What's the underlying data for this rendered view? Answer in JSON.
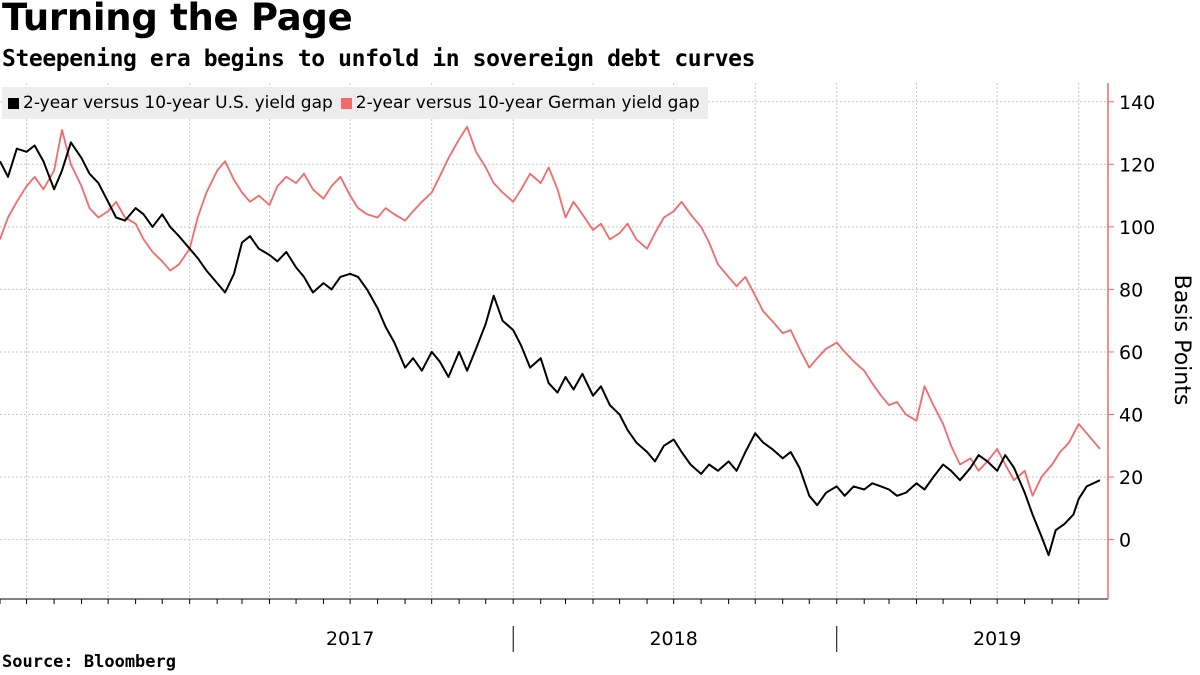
{
  "title": "Turning the Page",
  "subtitle": "Steepening era begins to unfold in sovereign debt curves",
  "source": "Source: Bloomberg",
  "colors": {
    "us": "#000000",
    "german": "#f26a6a",
    "axis": "#f26a6a",
    "grid": "#c8c8c8"
  },
  "chart_data": {
    "type": "line",
    "title": "Turning the Page",
    "subtitle": "Steepening era begins to unfold in sovereign debt curves",
    "xlabel": "",
    "ylabel": "Basis Points",
    "y_axis_side": "right",
    "ylim": [
      -19,
      146
    ],
    "yticks": [
      0,
      20,
      40,
      60,
      80,
      100,
      120,
      140
    ],
    "xlim": [
      "2016-06-01",
      "2019-10-25"
    ],
    "x_labels": [
      {
        "label": "2017",
        "date": "2017-07-01"
      },
      {
        "label": "2018",
        "date": "2018-07-01"
      },
      {
        "label": "2019",
        "date": "2019-07-01"
      }
    ],
    "year_separators": [
      "2018-01-01",
      "2019-01-01"
    ],
    "grid": true,
    "legend": "top-left",
    "series": [
      {
        "name": "2-year versus 10-year U.S. yield gap",
        "color": "#000000",
        "points": [
          [
            "2016-06-01",
            121
          ],
          [
            "2016-06-10",
            116
          ],
          [
            "2016-06-20",
            125
          ],
          [
            "2016-07-01",
            124
          ],
          [
            "2016-07-10",
            126
          ],
          [
            "2016-07-20",
            121
          ],
          [
            "2016-08-01",
            112
          ],
          [
            "2016-08-10",
            118
          ],
          [
            "2016-08-20",
            127
          ],
          [
            "2016-09-01",
            122
          ],
          [
            "2016-09-10",
            117
          ],
          [
            "2016-09-20",
            114
          ],
          [
            "2016-10-01",
            108
          ],
          [
            "2016-10-10",
            103
          ],
          [
            "2016-10-20",
            102
          ],
          [
            "2016-11-01",
            106
          ],
          [
            "2016-11-10",
            104
          ],
          [
            "2016-11-20",
            100
          ],
          [
            "2016-12-01",
            104
          ],
          [
            "2016-12-10",
            100
          ],
          [
            "2016-12-20",
            97
          ],
          [
            "2017-01-01",
            93
          ],
          [
            "2017-01-10",
            90
          ],
          [
            "2017-01-20",
            86
          ],
          [
            "2017-02-01",
            82
          ],
          [
            "2017-02-10",
            79
          ],
          [
            "2017-02-20",
            85
          ],
          [
            "2017-03-01",
            95
          ],
          [
            "2017-03-10",
            97
          ],
          [
            "2017-03-20",
            93
          ],
          [
            "2017-04-01",
            91
          ],
          [
            "2017-04-10",
            89
          ],
          [
            "2017-04-20",
            92
          ],
          [
            "2017-05-01",
            87
          ],
          [
            "2017-05-10",
            84
          ],
          [
            "2017-05-20",
            79
          ],
          [
            "2017-06-01",
            82
          ],
          [
            "2017-06-10",
            80
          ],
          [
            "2017-06-20",
            84
          ],
          [
            "2017-07-01",
            85
          ],
          [
            "2017-07-10",
            84
          ],
          [
            "2017-07-20",
            80
          ],
          [
            "2017-08-01",
            74
          ],
          [
            "2017-08-10",
            68
          ],
          [
            "2017-08-20",
            63
          ],
          [
            "2017-09-01",
            55
          ],
          [
            "2017-09-10",
            58
          ],
          [
            "2017-09-20",
            54
          ],
          [
            "2017-10-01",
            60
          ],
          [
            "2017-10-10",
            57
          ],
          [
            "2017-10-20",
            52
          ],
          [
            "2017-11-01",
            60
          ],
          [
            "2017-11-10",
            54
          ],
          [
            "2017-11-20",
            61
          ],
          [
            "2017-12-01",
            69
          ],
          [
            "2017-12-10",
            78
          ],
          [
            "2017-12-20",
            70
          ],
          [
            "2018-01-01",
            67
          ],
          [
            "2018-01-10",
            62
          ],
          [
            "2018-01-20",
            55
          ],
          [
            "2018-02-01",
            58
          ],
          [
            "2018-02-10",
            50
          ],
          [
            "2018-02-20",
            47
          ],
          [
            "2018-03-01",
            52
          ],
          [
            "2018-03-10",
            48
          ],
          [
            "2018-03-20",
            53
          ],
          [
            "2018-04-01",
            46
          ],
          [
            "2018-04-10",
            49
          ],
          [
            "2018-04-20",
            43
          ],
          [
            "2018-05-01",
            40
          ],
          [
            "2018-05-10",
            35
          ],
          [
            "2018-05-20",
            31
          ],
          [
            "2018-06-01",
            28
          ],
          [
            "2018-06-10",
            25
          ],
          [
            "2018-06-20",
            30
          ],
          [
            "2018-07-01",
            32
          ],
          [
            "2018-07-10",
            28
          ],
          [
            "2018-07-20",
            24
          ],
          [
            "2018-08-01",
            21
          ],
          [
            "2018-08-10",
            24
          ],
          [
            "2018-08-20",
            22
          ],
          [
            "2018-09-01",
            25
          ],
          [
            "2018-09-10",
            22
          ],
          [
            "2018-09-20",
            28
          ],
          [
            "2018-10-01",
            34
          ],
          [
            "2018-10-10",
            31
          ],
          [
            "2018-10-20",
            29
          ],
          [
            "2018-11-01",
            26
          ],
          [
            "2018-11-10",
            28
          ],
          [
            "2018-11-20",
            23
          ],
          [
            "2018-12-01",
            14
          ],
          [
            "2018-12-10",
            11
          ],
          [
            "2018-12-20",
            15
          ],
          [
            "2019-01-01",
            17
          ],
          [
            "2019-01-10",
            14
          ],
          [
            "2019-01-20",
            17
          ],
          [
            "2019-02-01",
            16
          ],
          [
            "2019-02-10",
            18
          ],
          [
            "2019-02-20",
            17
          ],
          [
            "2019-03-01",
            16
          ],
          [
            "2019-03-10",
            14
          ],
          [
            "2019-03-20",
            15
          ],
          [
            "2019-04-01",
            18
          ],
          [
            "2019-04-10",
            16
          ],
          [
            "2019-04-20",
            20
          ],
          [
            "2019-05-01",
            24
          ],
          [
            "2019-05-10",
            22
          ],
          [
            "2019-05-20",
            19
          ],
          [
            "2019-06-01",
            23
          ],
          [
            "2019-06-10",
            27
          ],
          [
            "2019-06-20",
            25
          ],
          [
            "2019-07-01",
            22
          ],
          [
            "2019-07-10",
            27
          ],
          [
            "2019-07-20",
            23
          ],
          [
            "2019-08-01",
            15
          ],
          [
            "2019-08-10",
            8
          ],
          [
            "2019-08-20",
            1
          ],
          [
            "2019-08-28",
            -5
          ],
          [
            "2019-09-05",
            3
          ],
          [
            "2019-09-15",
            5
          ],
          [
            "2019-09-25",
            8
          ],
          [
            "2019-10-01",
            13
          ],
          [
            "2019-10-10",
            17
          ],
          [
            "2019-10-25",
            19
          ]
        ]
      },
      {
        "name": "2-year versus 10-year German yield gap",
        "color": "#f26a6a",
        "points": [
          [
            "2016-06-01",
            96
          ],
          [
            "2016-06-10",
            103
          ],
          [
            "2016-06-20",
            108
          ],
          [
            "2016-07-01",
            113
          ],
          [
            "2016-07-10",
            116
          ],
          [
            "2016-07-20",
            112
          ],
          [
            "2016-08-01",
            118
          ],
          [
            "2016-08-10",
            131
          ],
          [
            "2016-08-20",
            120
          ],
          [
            "2016-09-01",
            113
          ],
          [
            "2016-09-10",
            106
          ],
          [
            "2016-09-20",
            103
          ],
          [
            "2016-10-01",
            105
          ],
          [
            "2016-10-10",
            108
          ],
          [
            "2016-10-20",
            103
          ],
          [
            "2016-11-01",
            101
          ],
          [
            "2016-11-10",
            96
          ],
          [
            "2016-11-20",
            92
          ],
          [
            "2016-12-01",
            89
          ],
          [
            "2016-12-10",
            86
          ],
          [
            "2016-12-20",
            88
          ],
          [
            "2017-01-01",
            93
          ],
          [
            "2017-01-10",
            103
          ],
          [
            "2017-01-20",
            111
          ],
          [
            "2017-02-01",
            118
          ],
          [
            "2017-02-10",
            121
          ],
          [
            "2017-02-20",
            115
          ],
          [
            "2017-03-01",
            111
          ],
          [
            "2017-03-10",
            108
          ],
          [
            "2017-03-20",
            110
          ],
          [
            "2017-04-01",
            107
          ],
          [
            "2017-04-10",
            113
          ],
          [
            "2017-04-20",
            116
          ],
          [
            "2017-05-01",
            114
          ],
          [
            "2017-05-10",
            117
          ],
          [
            "2017-05-20",
            112
          ],
          [
            "2017-06-01",
            109
          ],
          [
            "2017-06-10",
            113
          ],
          [
            "2017-06-20",
            116
          ],
          [
            "2017-07-01",
            110
          ],
          [
            "2017-07-10",
            106
          ],
          [
            "2017-07-20",
            104
          ],
          [
            "2017-08-01",
            103
          ],
          [
            "2017-08-10",
            106
          ],
          [
            "2017-08-20",
            104
          ],
          [
            "2017-09-01",
            102
          ],
          [
            "2017-09-10",
            105
          ],
          [
            "2017-09-20",
            108
          ],
          [
            "2017-10-01",
            111
          ],
          [
            "2017-10-10",
            116
          ],
          [
            "2017-10-20",
            122
          ],
          [
            "2017-11-01",
            128
          ],
          [
            "2017-11-10",
            132
          ],
          [
            "2017-11-20",
            124
          ],
          [
            "2017-12-01",
            119
          ],
          [
            "2017-12-10",
            114
          ],
          [
            "2017-12-20",
            111
          ],
          [
            "2018-01-01",
            108
          ],
          [
            "2018-01-10",
            112
          ],
          [
            "2018-01-20",
            117
          ],
          [
            "2018-02-01",
            114
          ],
          [
            "2018-02-10",
            119
          ],
          [
            "2018-02-20",
            112
          ],
          [
            "2018-03-01",
            103
          ],
          [
            "2018-03-10",
            108
          ],
          [
            "2018-03-20",
            104
          ],
          [
            "2018-04-01",
            99
          ],
          [
            "2018-04-10",
            101
          ],
          [
            "2018-04-20",
            96
          ],
          [
            "2018-05-01",
            98
          ],
          [
            "2018-05-10",
            101
          ],
          [
            "2018-05-20",
            96
          ],
          [
            "2018-06-01",
            93
          ],
          [
            "2018-06-10",
            98
          ],
          [
            "2018-06-20",
            103
          ],
          [
            "2018-07-01",
            105
          ],
          [
            "2018-07-10",
            108
          ],
          [
            "2018-07-20",
            104
          ],
          [
            "2018-08-01",
            100
          ],
          [
            "2018-08-10",
            95
          ],
          [
            "2018-08-20",
            88
          ],
          [
            "2018-09-01",
            84
          ],
          [
            "2018-09-10",
            81
          ],
          [
            "2018-09-20",
            84
          ],
          [
            "2018-10-01",
            78
          ],
          [
            "2018-10-10",
            73
          ],
          [
            "2018-10-20",
            70
          ],
          [
            "2018-11-01",
            66
          ],
          [
            "2018-11-10",
            67
          ],
          [
            "2018-11-20",
            61
          ],
          [
            "2018-12-01",
            55
          ],
          [
            "2018-12-10",
            58
          ],
          [
            "2018-12-20",
            61
          ],
          [
            "2019-01-01",
            63
          ],
          [
            "2019-01-10",
            60
          ],
          [
            "2019-01-20",
            57
          ],
          [
            "2019-02-01",
            54
          ],
          [
            "2019-02-10",
            50
          ],
          [
            "2019-02-20",
            46
          ],
          [
            "2019-03-01",
            43
          ],
          [
            "2019-03-10",
            44
          ],
          [
            "2019-03-20",
            40
          ],
          [
            "2019-04-01",
            38
          ],
          [
            "2019-04-10",
            49
          ],
          [
            "2019-04-20",
            43
          ],
          [
            "2019-05-01",
            37
          ],
          [
            "2019-05-10",
            30
          ],
          [
            "2019-05-20",
            24
          ],
          [
            "2019-06-01",
            26
          ],
          [
            "2019-06-10",
            22
          ],
          [
            "2019-06-20",
            25
          ],
          [
            "2019-07-01",
            29
          ],
          [
            "2019-07-10",
            24
          ],
          [
            "2019-07-20",
            19
          ],
          [
            "2019-08-01",
            22
          ],
          [
            "2019-08-10",
            14
          ],
          [
            "2019-08-20",
            20
          ],
          [
            "2019-09-01",
            24
          ],
          [
            "2019-09-10",
            28
          ],
          [
            "2019-09-20",
            31
          ],
          [
            "2019-10-01",
            37
          ],
          [
            "2019-10-10",
            34
          ],
          [
            "2019-10-25",
            29
          ]
        ]
      }
    ]
  }
}
